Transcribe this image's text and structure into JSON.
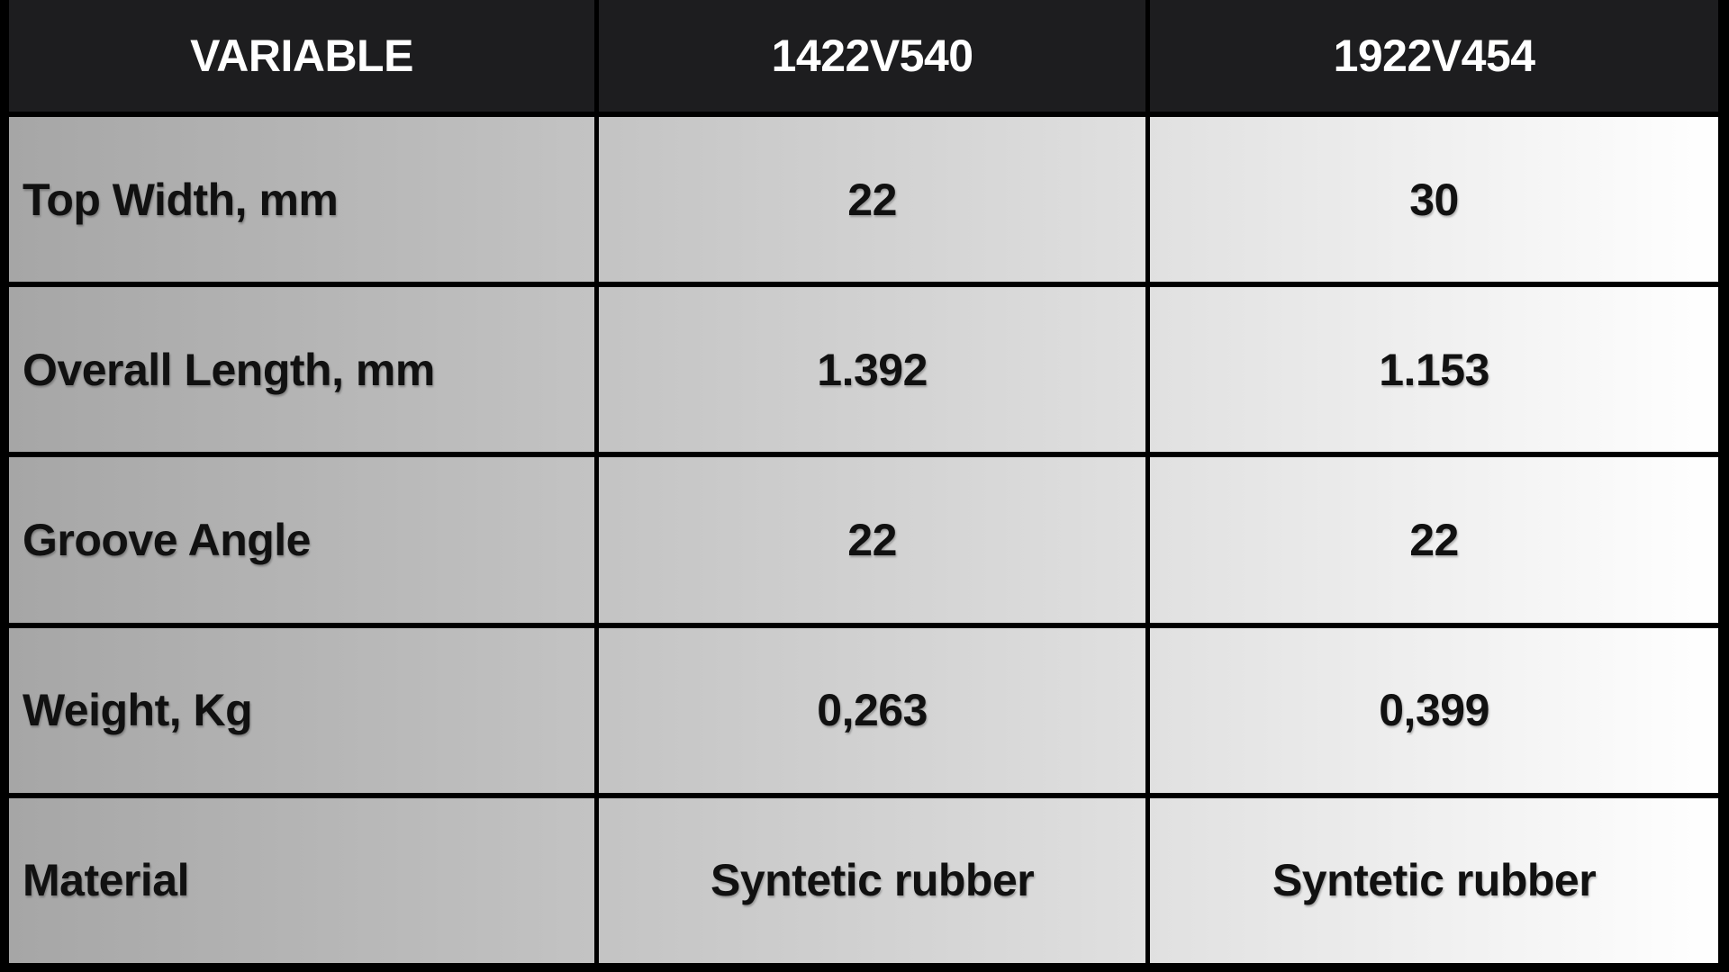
{
  "table": {
    "columns": [
      {
        "key": "variable",
        "label": "VARIABLE"
      },
      {
        "key": "model1",
        "label": "1422V540"
      },
      {
        "key": "model2",
        "label": "1922V454"
      }
    ],
    "rows": [
      {
        "variable": "Top Width, mm",
        "model1": "22",
        "model2": "30"
      },
      {
        "variable": "Overall Length, mm",
        "model1": "1.392",
        "model2": "1.153"
      },
      {
        "variable": "Groove Angle",
        "model1": "22",
        "model2": "22"
      },
      {
        "variable": "Weight, Kg",
        "model1": "0,263",
        "model2": "0,399"
      },
      {
        "variable": "Material",
        "model1": "Syntetic rubber",
        "model2": "Syntetic rubber"
      }
    ],
    "colors": {
      "header_bg": "#1d1d1f",
      "header_text": "#ffffff",
      "body_gradient_start": "#a6a6a6",
      "body_gradient_end": "#ffffff",
      "border": "#000000",
      "cell_text": "#111111"
    }
  }
}
